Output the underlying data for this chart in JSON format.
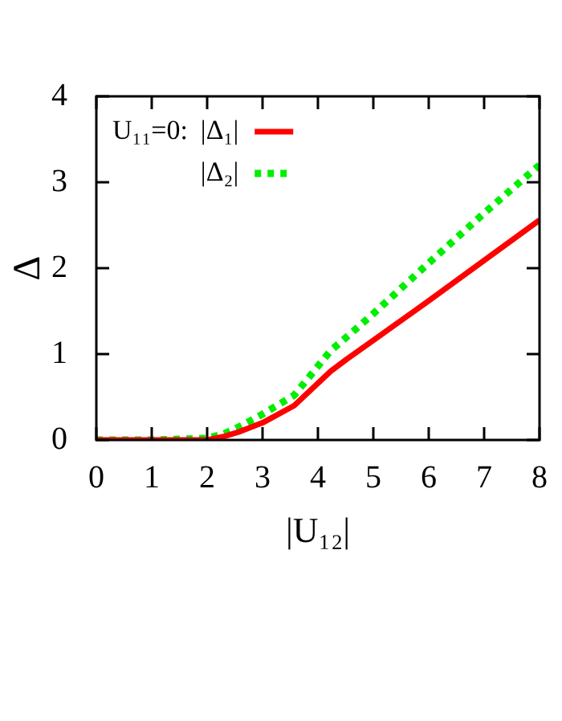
{
  "chart_data": {
    "type": "line",
    "xlabel": "|U₁₂|",
    "ylabel": "Δ",
    "legend_title": "U₁₁=0:",
    "legend": "top left",
    "marker": "none",
    "xlim": [
      0,
      8
    ],
    "xticks": [
      0,
      1,
      2,
      3,
      4,
      5,
      6,
      7,
      8
    ],
    "ylim": [
      0,
      4
    ],
    "yticks": [
      0,
      1,
      2,
      3,
      4
    ],
    "series": [
      {
        "name": "|Δ₁|",
        "color": "#ff0000",
        "line_style": "solid",
        "x": [
          0,
          1,
          2,
          2.3,
          2.6,
          3,
          3.57,
          4.23,
          4.52,
          5,
          6,
          7,
          8
        ],
        "values": [
          0,
          0,
          0,
          0.04,
          0.1,
          0.2,
          0.4,
          0.8,
          0.94,
          1.16,
          1.62,
          2.09,
          2.56
        ]
      },
      {
        "name": "|Δ₂|",
        "color": "#00ee00",
        "line_style": "dotted",
        "x": [
          0,
          1,
          2,
          2.3,
          2.6,
          3,
          3.57,
          4.23,
          4.52,
          5,
          6,
          7,
          8
        ],
        "values": [
          0,
          0,
          0.02,
          0.07,
          0.16,
          0.3,
          0.52,
          1.04,
          1.2,
          1.47,
          2.06,
          2.64,
          3.2
        ]
      }
    ]
  }
}
